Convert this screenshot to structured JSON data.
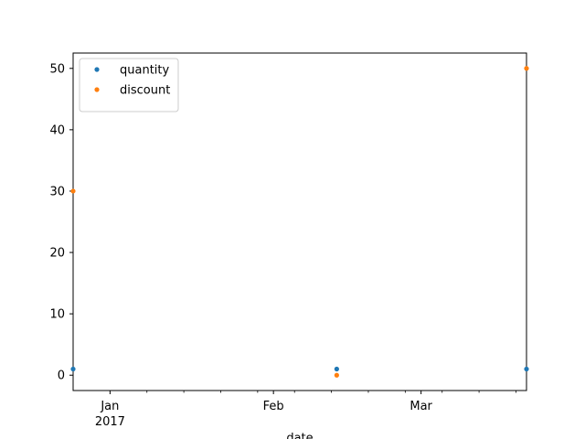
{
  "chart_data": {
    "type": "scatter",
    "xlabel": "date",
    "ylabel": "",
    "title": "",
    "xlim": [
      "2016-12-25",
      "2017-03-21"
    ],
    "ylim": [
      -2.5,
      52.5
    ],
    "yticks": [
      0,
      10,
      20,
      30,
      40,
      50
    ],
    "xticks": [
      {
        "date": "2017-01-01",
        "label": "Jan",
        "sublabel": "2017"
      },
      {
        "date": "2017-02-01",
        "label": "Feb",
        "sublabel": ""
      },
      {
        "date": "2017-03-01",
        "label": "Mar",
        "sublabel": ""
      }
    ],
    "x_minor_ticks": [
      "2017-01-08",
      "2017-01-15",
      "2017-01-22",
      "2017-01-29",
      "2017-02-05",
      "2017-02-12",
      "2017-02-19",
      "2017-02-26",
      "2017-03-05",
      "2017-03-12",
      "2017-03-19"
    ],
    "grid": false,
    "legend_position": "top-left",
    "series": [
      {
        "name": "quantity",
        "color": "#1f77b4",
        "points": [
          {
            "x": "2016-12-25",
            "y": 1
          },
          {
            "x": "2017-02-13",
            "y": 1
          },
          {
            "x": "2017-03-21",
            "y": 1
          }
        ]
      },
      {
        "name": "discount",
        "color": "#ff7f0e",
        "points": [
          {
            "x": "2016-12-25",
            "y": 30
          },
          {
            "x": "2017-02-13",
            "y": 0
          },
          {
            "x": "2017-03-21",
            "y": 50
          }
        ]
      }
    ]
  }
}
